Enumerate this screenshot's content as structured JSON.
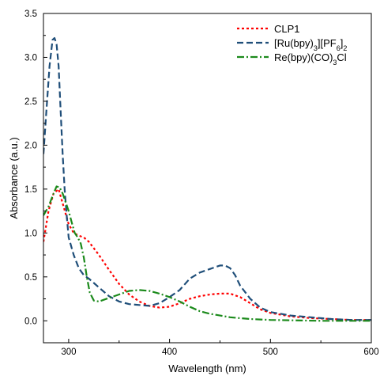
{
  "chart_data": {
    "type": "line",
    "xlabel": "Wavelength (nm)",
    "ylabel": "Absorbance (a.u.)",
    "xlim": [
      275,
      600
    ],
    "ylim": [
      -0.25,
      3.5
    ],
    "x_ticks": [
      300,
      400,
      500,
      600
    ],
    "y_ticks": [
      0.0,
      0.5,
      1.0,
      1.5,
      2.0,
      2.5,
      3.0,
      3.5
    ],
    "x_tick_labels": [
      "300",
      "400",
      "500",
      "600"
    ],
    "y_tick_labels": [
      "0.0",
      "0.5",
      "1.0",
      "1.5",
      "2.0",
      "2.5",
      "3.0",
      "3.5"
    ],
    "grid": false,
    "legend_position": "top-right",
    "series": [
      {
        "name": "CLP1",
        "legend": {
          "pre": "CLP1",
          "parts": []
        },
        "color": "#ff0000",
        "dash": "3,3",
        "points": [
          [
            275,
            0.9
          ],
          [
            280,
            1.25
          ],
          [
            285,
            1.45
          ],
          [
            290,
            1.5
          ],
          [
            295,
            1.3
          ],
          [
            300,
            1.1
          ],
          [
            305,
            1.0
          ],
          [
            310,
            0.97
          ],
          [
            315,
            0.95
          ],
          [
            320,
            0.9
          ],
          [
            330,
            0.75
          ],
          [
            340,
            0.58
          ],
          [
            350,
            0.42
          ],
          [
            360,
            0.3
          ],
          [
            370,
            0.22
          ],
          [
            380,
            0.17
          ],
          [
            390,
            0.15
          ],
          [
            400,
            0.16
          ],
          [
            410,
            0.2
          ],
          [
            420,
            0.25
          ],
          [
            430,
            0.28
          ],
          [
            440,
            0.3
          ],
          [
            450,
            0.31
          ],
          [
            460,
            0.31
          ],
          [
            470,
            0.27
          ],
          [
            480,
            0.2
          ],
          [
            490,
            0.13
          ],
          [
            500,
            0.09
          ],
          [
            520,
            0.05
          ],
          [
            540,
            0.03
          ],
          [
            560,
            0.02
          ],
          [
            580,
            0.01
          ],
          [
            600,
            0.01
          ]
        ]
      },
      {
        "name": "[Ru(bpy)3][PF6]2",
        "legend": {
          "pre": "[Ru(bpy)",
          "parts": [
            [
              "3",
              "sub"
            ],
            [
              "][PF",
              ""
            ],
            [
              "6",
              "sub"
            ],
            [
              "]",
              ""
            ],
            [
              "2",
              "sub"
            ]
          ]
        },
        "color": "#1f4e79",
        "dash": "8,4",
        "points": [
          [
            275,
            1.9
          ],
          [
            278,
            2.4
          ],
          [
            281,
            2.9
          ],
          [
            284,
            3.2
          ],
          [
            286,
            3.22
          ],
          [
            288,
            3.15
          ],
          [
            290,
            2.9
          ],
          [
            292,
            2.4
          ],
          [
            294,
            1.9
          ],
          [
            296,
            1.5
          ],
          [
            298,
            1.2
          ],
          [
            300,
            0.95
          ],
          [
            305,
            0.75
          ],
          [
            310,
            0.6
          ],
          [
            315,
            0.52
          ],
          [
            320,
            0.48
          ],
          [
            330,
            0.38
          ],
          [
            340,
            0.28
          ],
          [
            350,
            0.22
          ],
          [
            360,
            0.19
          ],
          [
            370,
            0.18
          ],
          [
            380,
            0.17
          ],
          [
            390,
            0.2
          ],
          [
            400,
            0.27
          ],
          [
            410,
            0.35
          ],
          [
            420,
            0.48
          ],
          [
            430,
            0.55
          ],
          [
            440,
            0.59
          ],
          [
            450,
            0.63
          ],
          [
            455,
            0.63
          ],
          [
            460,
            0.6
          ],
          [
            465,
            0.52
          ],
          [
            470,
            0.4
          ],
          [
            480,
            0.25
          ],
          [
            490,
            0.15
          ],
          [
            500,
            0.1
          ],
          [
            520,
            0.06
          ],
          [
            540,
            0.04
          ],
          [
            560,
            0.02
          ],
          [
            580,
            0.01
          ],
          [
            600,
            0.01
          ]
        ]
      },
      {
        "name": "Re(bpy)(CO)3Cl",
        "legend": {
          "pre": "Re(bpy)(CO)",
          "parts": [
            [
              "3",
              "sub"
            ],
            [
              "Cl",
              ""
            ]
          ]
        },
        "color": "#1b8a1b",
        "dash": "9,3,2,3",
        "points": [
          [
            275,
            1.2
          ],
          [
            280,
            1.3
          ],
          [
            285,
            1.45
          ],
          [
            288,
            1.53
          ],
          [
            291,
            1.52
          ],
          [
            294,
            1.45
          ],
          [
            297,
            1.35
          ],
          [
            300,
            1.25
          ],
          [
            303,
            1.12
          ],
          [
            306,
            1.0
          ],
          [
            309,
            0.95
          ],
          [
            312,
            0.88
          ],
          [
            315,
            0.72
          ],
          [
            318,
            0.5
          ],
          [
            321,
            0.32
          ],
          [
            325,
            0.23
          ],
          [
            330,
            0.22
          ],
          [
            340,
            0.26
          ],
          [
            350,
            0.3
          ],
          [
            360,
            0.34
          ],
          [
            370,
            0.35
          ],
          [
            380,
            0.34
          ],
          [
            390,
            0.31
          ],
          [
            400,
            0.27
          ],
          [
            410,
            0.22
          ],
          [
            420,
            0.16
          ],
          [
            430,
            0.11
          ],
          [
            440,
            0.08
          ],
          [
            450,
            0.06
          ],
          [
            460,
            0.04
          ],
          [
            480,
            0.02
          ],
          [
            500,
            0.01
          ],
          [
            550,
            0.0
          ],
          [
            600,
            0.0
          ]
        ]
      }
    ]
  }
}
